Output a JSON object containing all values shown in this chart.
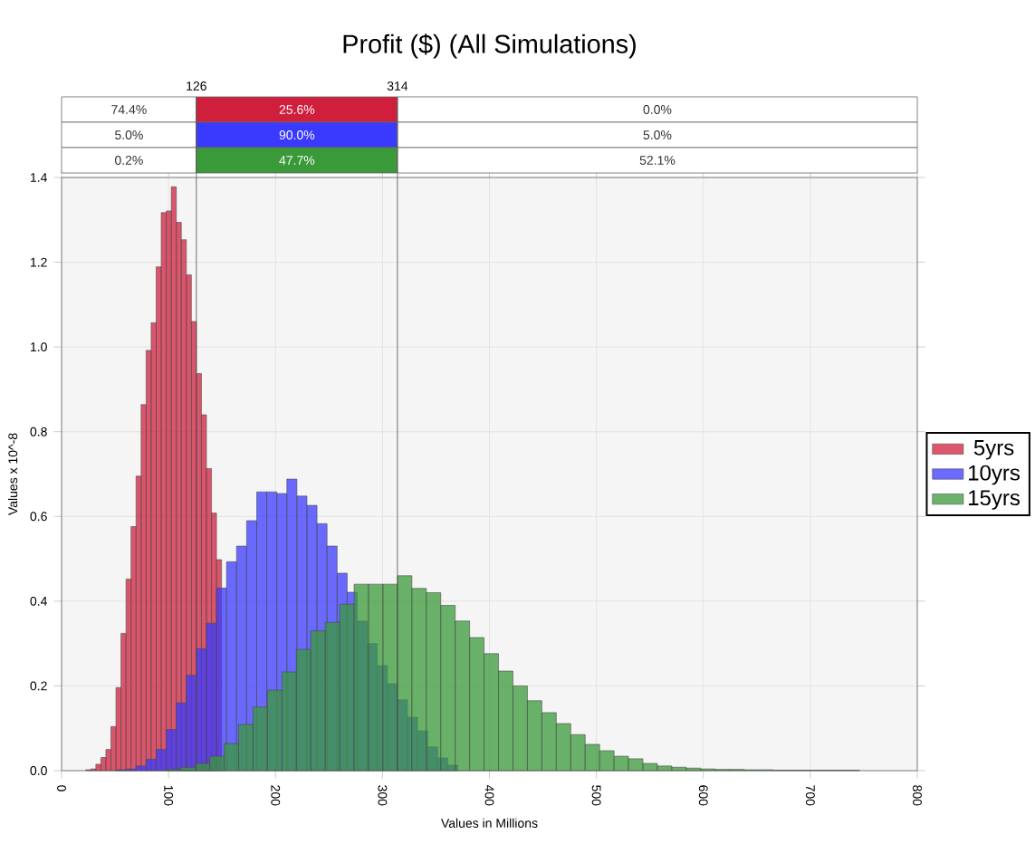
{
  "chart_data": {
    "type": "bar",
    "title": "Profit ($) (All Simulations)",
    "xlabel": "Values in Millions",
    "ylabel": "Values x 10^-8",
    "series": [
      {
        "name": "5yrs",
        "color": "#d01f3c",
        "x": [
          25,
          29.7,
          34.4,
          39.1,
          43.8,
          48.5,
          53.2,
          57.9,
          62.6,
          67.3,
          72,
          76.7,
          81.4,
          86.1,
          90.8,
          95.5,
          100.2,
          104.9,
          109.6,
          114.3,
          119,
          123.7,
          128.4,
          133.1,
          137.8,
          142.5,
          147.2
        ],
        "values": [
          0.002,
          0.004,
          0.015,
          0.031,
          0.05,
          0.104,
          0.196,
          0.324,
          0.452,
          0.576,
          0.695,
          0.864,
          0.992,
          1.057,
          1.189,
          1.317,
          1.321,
          1.378,
          1.294,
          1.253,
          1.17,
          1.06,
          0.937,
          0.84,
          0.713,
          0.608,
          0.498
        ]
      },
      {
        "name": "10yrs",
        "color": "#3a3aff",
        "x": [
          55.5,
          64.9,
          74.3,
          83.7,
          93.1,
          102.5,
          111.9,
          121.3,
          130.7,
          140.1,
          149.5,
          158.9,
          168.3,
          177.7,
          187.1,
          196.5,
          205.9,
          215.3,
          224.7,
          234.1,
          243.5,
          252.9,
          262.3,
          271.7,
          281.1,
          290.5,
          299.9,
          309.3,
          318.7,
          328.1,
          337.5,
          346.9,
          356.3,
          365.7
        ],
        "values": [
          0.002,
          0.004,
          0.011,
          0.027,
          0.05,
          0.097,
          0.16,
          0.225,
          0.288,
          0.348,
          0.431,
          0.493,
          0.53,
          0.59,
          0.658,
          0.658,
          0.654,
          0.688,
          0.648,
          0.626,
          0.583,
          0.53,
          0.466,
          0.421,
          0.353,
          0.3,
          0.248,
          0.205,
          0.167,
          0.126,
          0.094,
          0.056,
          0.03,
          0.013
        ]
      },
      {
        "name": "15yrs",
        "color": "#3a9a3a",
        "x": [
          104.75,
          118.25,
          131.75,
          145.25,
          158.75,
          172.25,
          185.75,
          199.25,
          212.75,
          226.25,
          239.75,
          253.25,
          266.75,
          280.25,
          293.75,
          307.25,
          320.75,
          334.25,
          347.75,
          361.25,
          374.75,
          388.25,
          401.75,
          415.25,
          428.75,
          442.25,
          455.75,
          469.25,
          482.75,
          496.25,
          509.75,
          523.25,
          536.75,
          550.25,
          563.75,
          577.25,
          590.75,
          604.25,
          617.75,
          631.25,
          644.75,
          658.25,
          671.75,
          685.25,
          698.75,
          712.25,
          725.75,
          739.25
        ],
        "values": [
          0.003,
          0.008,
          0.017,
          0.034,
          0.064,
          0.109,
          0.15,
          0.19,
          0.233,
          0.286,
          0.33,
          0.35,
          0.393,
          0.44,
          0.44,
          0.44,
          0.46,
          0.43,
          0.42,
          0.39,
          0.353,
          0.314,
          0.276,
          0.235,
          0.2,
          0.165,
          0.137,
          0.111,
          0.085,
          0.062,
          0.047,
          0.034,
          0.028,
          0.017,
          0.011,
          0.008,
          0.006,
          0.004,
          0.003,
          0.003,
          0.002,
          0.002,
          0.001,
          0.001,
          0.001,
          0.001,
          0.001,
          0.001
        ]
      }
    ],
    "xlim": [
      0,
      800
    ],
    "xticks": [
      0,
      100,
      200,
      300,
      400,
      500,
      600,
      700,
      800
    ],
    "ylim": [
      0,
      1.4
    ],
    "yticks": [
      {
        "value": 0,
        "label": "0.0"
      },
      0.2,
      0.4,
      0.6,
      0.8,
      {
        "value": 1,
        "label": "1.0"
      },
      1.2,
      1.4
    ],
    "ref_lines": [
      {
        "axis": "x",
        "value": 126,
        "label": "126"
      },
      {
        "axis": "x",
        "value": 314,
        "label": "314"
      }
    ],
    "annotations": [
      "74.4%",
      "25.6%",
      "0.0%",
      "5.0%",
      "90.0%",
      "5.0%",
      "0.2%",
      "47.7%",
      "52.1%"
    ],
    "grid": true,
    "legend": "right"
  }
}
